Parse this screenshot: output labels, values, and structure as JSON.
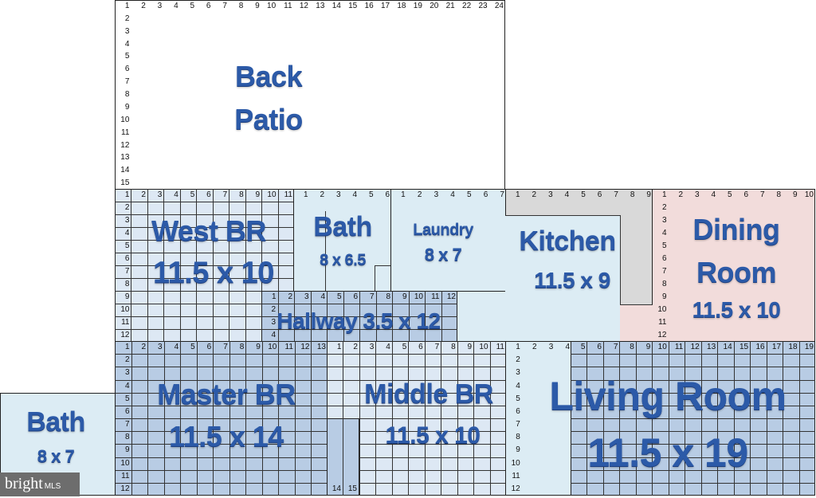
{
  "rooms": {
    "patio": {
      "line1": "Back",
      "line2": "Patio",
      "columns": 24,
      "rows": 15
    },
    "west_br": {
      "name": "West BR",
      "size": "11.5 x 10",
      "columns": 11,
      "rows": 12
    },
    "bath_upper": {
      "name": "Bath",
      "size": "8 x 6.5",
      "columns": 6
    },
    "laundry": {
      "name": "Laundry",
      "size": "8 x 7",
      "columns": 7
    },
    "kitchen": {
      "name": "Kitchen",
      "size": "11.5 x 9",
      "columns": 9
    },
    "dining": {
      "line1": "Dining",
      "line2": "Room",
      "size": "11.5 x 10",
      "columns": 10,
      "rows": 12
    },
    "hallway": {
      "name": "Hallway 3.5 x 12",
      "columns": 12,
      "rows": 4
    },
    "master_br": {
      "name": "Master BR",
      "size": "11.5 x 14",
      "columns": 13,
      "rows": 12,
      "extra_columns": [
        "14",
        "15"
      ]
    },
    "middle_br": {
      "name": "Middle BR",
      "size": "11.5 x 10",
      "columns": 11
    },
    "living": {
      "line1": "Living Room",
      "size": "11.5 x 19",
      "columns": 19,
      "rows": 12
    },
    "bath_lower": {
      "name": "Bath",
      "size": "8 x 7"
    }
  },
  "logo": {
    "brand": "bright",
    "suffix": "MLS"
  },
  "colors": {
    "light_blue": "#dcecf4",
    "grid_blue": "#b8cce4",
    "pale_blue": "#dde8f4",
    "gray": "#d9d9d9",
    "pink": "#f2dcdb",
    "label": "#2c5aa8"
  }
}
